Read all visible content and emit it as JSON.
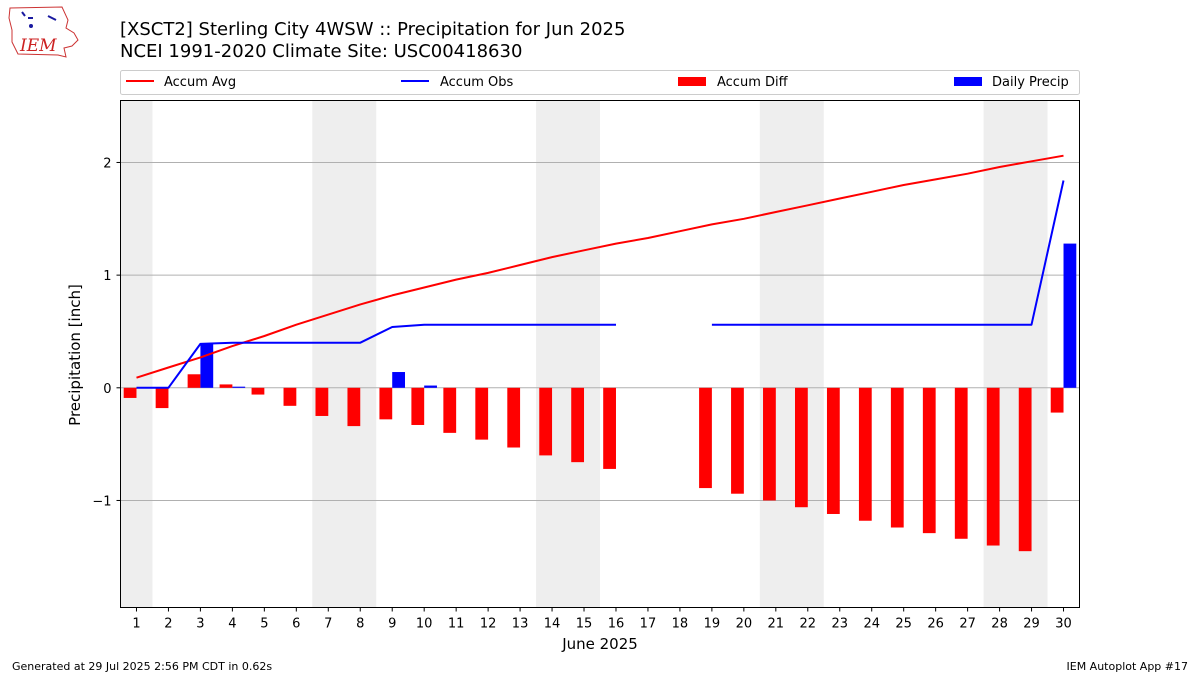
{
  "title_line1": "[XSCT2] Sterling City 4WSW :: Precipitation for Jun 2025",
  "title_line2": "NCEI 1991-2020 Climate Site: USC00418630",
  "logo": {
    "text": "IEM"
  },
  "footer": {
    "left": "Generated at 29 Jul 2025 2:56 PM CDT in 0.62s",
    "right": "IEM Autoplot App #17"
  },
  "colors": {
    "avg": "#ff0000",
    "obs": "#0000ff",
    "diff": "#ff0000",
    "daily": "#0000ff",
    "weekend": "#eeeeee"
  },
  "chart_data": {
    "type": "bar",
    "xlabel": "June 2025",
    "ylabel": "Precipitation [inch]",
    "xlim": [
      0.5,
      30.5
    ],
    "ylim": [
      -1.95,
      2.55
    ],
    "yticks": [
      -1,
      0,
      1,
      2
    ],
    "ytick_labels": [
      "−1",
      "0",
      "1",
      "2"
    ],
    "xticks": [
      1,
      2,
      3,
      4,
      5,
      6,
      7,
      8,
      9,
      10,
      11,
      12,
      13,
      14,
      15,
      16,
      17,
      18,
      19,
      20,
      21,
      22,
      23,
      24,
      25,
      26,
      27,
      28,
      29,
      30
    ],
    "grid": true,
    "legend_placement": "top",
    "weekend_bands": [
      [
        0.5,
        1.5
      ],
      [
        6.5,
        8.5
      ],
      [
        13.5,
        15.5
      ],
      [
        20.5,
        22.5
      ],
      [
        27.5,
        29.5
      ]
    ],
    "series": [
      {
        "name": "Accum Avg",
        "kind": "line",
        "x": [
          1,
          2,
          3,
          4,
          5,
          6,
          7,
          8,
          9,
          10,
          11,
          12,
          13,
          14,
          15,
          16,
          17,
          18,
          19,
          20,
          21,
          22,
          23,
          24,
          25,
          26,
          27,
          28,
          29,
          30
        ],
        "values": [
          0.09,
          0.18,
          0.27,
          0.37,
          0.46,
          0.56,
          0.65,
          0.74,
          0.82,
          0.89,
          0.96,
          1.02,
          1.09,
          1.16,
          1.22,
          1.28,
          1.33,
          1.39,
          1.45,
          1.5,
          1.56,
          1.62,
          1.68,
          1.74,
          1.8,
          1.85,
          1.9,
          1.96,
          2.01,
          2.06
        ]
      },
      {
        "name": "Accum Obs",
        "kind": "line",
        "x": [
          1,
          2,
          3,
          4,
          5,
          6,
          7,
          8,
          9,
          10,
          11,
          12,
          13,
          14,
          15,
          16,
          17,
          18,
          19,
          20,
          21,
          22,
          23,
          24,
          25,
          26,
          27,
          28,
          29,
          30
        ],
        "values": [
          0.0,
          0.0,
          0.39,
          0.4,
          0.4,
          0.4,
          0.4,
          0.4,
          0.54,
          0.56,
          0.56,
          0.56,
          0.56,
          0.56,
          0.56,
          0.56,
          null,
          null,
          0.56,
          0.56,
          0.56,
          0.56,
          0.56,
          0.56,
          0.56,
          0.56,
          0.56,
          0.56,
          0.56,
          1.84
        ]
      },
      {
        "name": "Accum Diff",
        "kind": "bar",
        "x": [
          1,
          2,
          3,
          4,
          5,
          6,
          7,
          8,
          9,
          10,
          11,
          12,
          13,
          14,
          15,
          16,
          19,
          20,
          21,
          22,
          23,
          24,
          25,
          26,
          27,
          28,
          29,
          30
        ],
        "values": [
          -0.09,
          -0.18,
          0.12,
          0.03,
          -0.06,
          -0.16,
          -0.25,
          -0.34,
          -0.28,
          -0.33,
          -0.4,
          -0.46,
          -0.53,
          -0.6,
          -0.66,
          -0.72,
          -0.89,
          -0.94,
          -1.0,
          -1.06,
          -1.12,
          -1.18,
          -1.24,
          -1.29,
          -1.34,
          -1.4,
          -1.45,
          -0.22
        ]
      },
      {
        "name": "Daily Precip",
        "kind": "bar",
        "x": [
          3,
          4,
          9,
          10,
          30
        ],
        "values": [
          0.39,
          0.01,
          0.14,
          0.02,
          1.28
        ]
      }
    ]
  }
}
